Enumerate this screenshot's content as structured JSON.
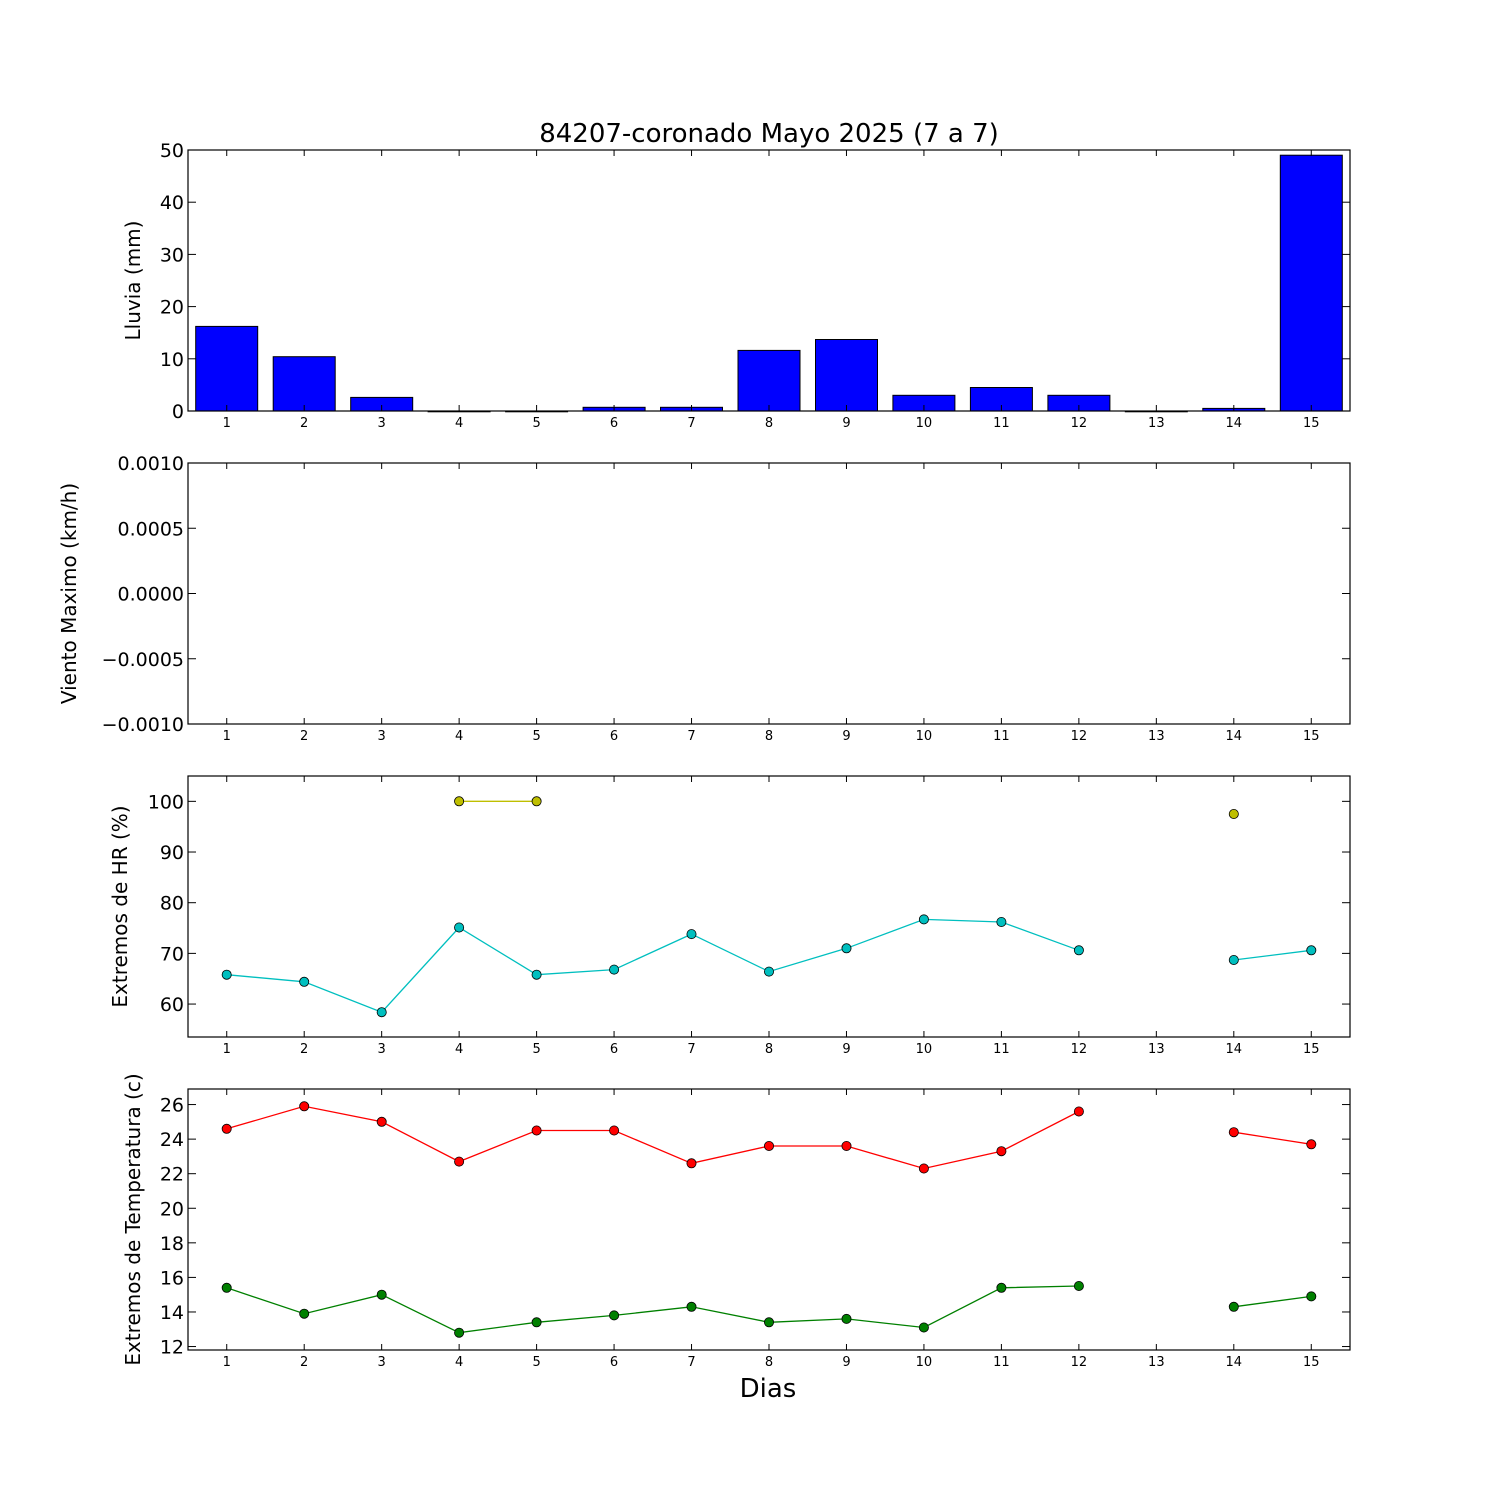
{
  "figure": {
    "title": "84207-coronado Mayo 2025  (7 a 7)",
    "xlabel": "Dias"
  },
  "chart_data": [
    {
      "type": "bar",
      "ylabel": "Lluvia (mm)",
      "categories": [
        "1",
        "2",
        "3",
        "4",
        "5",
        "6",
        "7",
        "8",
        "9",
        "10",
        "11",
        "12",
        "13",
        "14",
        "15"
      ],
      "values": [
        16.2,
        10.4,
        2.6,
        0,
        0,
        0.7,
        0.7,
        11.6,
        13.7,
        3.0,
        4.5,
        3.0,
        0,
        0.5,
        49.0
      ],
      "ylim": [
        0,
        50
      ],
      "yticks": [
        "0",
        "10",
        "20",
        "30",
        "40",
        "50"
      ],
      "color": "#0000ff"
    },
    {
      "type": "line",
      "ylabel": "Viento Maximo (km/h)",
      "categories": [
        "1",
        "2",
        "3",
        "4",
        "5",
        "6",
        "7",
        "8",
        "9",
        "10",
        "11",
        "12",
        "13",
        "14",
        "15"
      ],
      "series": [],
      "ylim": [
        -0.001,
        0.001
      ],
      "yticks": [
        "−0.0010",
        "−0.0005",
        "0.0000",
        "0.0005",
        "0.0010"
      ]
    },
    {
      "type": "line",
      "ylabel": "Extremos de HR (%)",
      "categories": [
        "1",
        "2",
        "3",
        "4",
        "5",
        "6",
        "7",
        "8",
        "9",
        "10",
        "11",
        "12",
        "13",
        "14",
        "15"
      ],
      "ylim": [
        53.5,
        105
      ],
      "yticks": [
        "60",
        "70",
        "80",
        "90",
        "100"
      ],
      "series": [
        {
          "color": "#bfbf00",
          "values": [
            null,
            null,
            null,
            100,
            100,
            null,
            null,
            null,
            null,
            null,
            null,
            null,
            null,
            97.5,
            null
          ]
        },
        {
          "color": "#00bfbf",
          "values": [
            65.8,
            64.4,
            58.4,
            75.1,
            65.8,
            66.8,
            73.8,
            66.4,
            71.0,
            76.7,
            76.2,
            70.6,
            null,
            68.7,
            70.6
          ]
        }
      ]
    },
    {
      "type": "line",
      "ylabel": "Extremos de Temperatura (c)",
      "categories": [
        "1",
        "2",
        "3",
        "4",
        "5",
        "6",
        "7",
        "8",
        "9",
        "10",
        "11",
        "12",
        "13",
        "14",
        "15"
      ],
      "ylim": [
        11.8,
        26.9
      ],
      "yticks": [
        "12",
        "14",
        "16",
        "18",
        "20",
        "22",
        "24",
        "26"
      ],
      "series": [
        {
          "color": "#ff0000",
          "values": [
            24.6,
            25.9,
            25.0,
            22.7,
            24.5,
            24.5,
            22.6,
            23.6,
            23.6,
            22.3,
            23.3,
            25.6,
            null,
            24.4,
            23.7
          ]
        },
        {
          "color": "#008000",
          "values": [
            15.4,
            13.9,
            15.0,
            12.8,
            13.4,
            13.8,
            14.3,
            13.4,
            13.6,
            13.1,
            15.4,
            15.5,
            null,
            14.3,
            14.9
          ]
        }
      ]
    }
  ]
}
